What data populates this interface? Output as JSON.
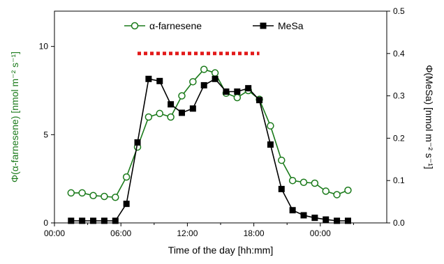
{
  "chart_data": {
    "type": "line",
    "xlabel": "Time of the day [hh:mm]",
    "ylabel_left": "Φ(α-farnesene) [nmol m⁻² s⁻¹]",
    "ylabel_right": "Φ(MeSa) [nmol m⁻² s⁻¹]",
    "xlim": [
      0,
      30
    ],
    "ylim_left": [
      0,
      12
    ],
    "ylim_right": [
      0,
      0.5
    ],
    "x_ticks": [
      {
        "value": 0,
        "label": "00:00"
      },
      {
        "value": 6,
        "label": "06:00"
      },
      {
        "value": 12,
        "label": "12:00"
      },
      {
        "value": 18,
        "label": "18:00"
      },
      {
        "value": 24,
        "label": "00:00"
      }
    ],
    "y_ticks_left": [
      {
        "value": 0,
        "label": "0"
      },
      {
        "value": 5,
        "label": "5"
      },
      {
        "value": 10,
        "label": "10"
      }
    ],
    "y_ticks_right": [
      {
        "value": 0,
        "label": "0.0"
      },
      {
        "value": 0.1,
        "label": "0.1"
      },
      {
        "value": 0.2,
        "label": "0.2"
      },
      {
        "value": 0.3,
        "label": "0.3"
      },
      {
        "value": 0.4,
        "label": "0.4"
      },
      {
        "value": 0.5,
        "label": "0.5"
      }
    ],
    "legend_position": "top",
    "grid": false,
    "series": [
      {
        "name": "α-farnesene",
        "axis": "left",
        "color": "#1a7a1a",
        "marker": "open-circle",
        "x": [
          1.5,
          2.5,
          3.5,
          4.5,
          5.5,
          6.5,
          7.5,
          8.5,
          9.5,
          10.5,
          11.5,
          12.5,
          13.5,
          14.5,
          15.5,
          16.5,
          17.5,
          18.5,
          19.5,
          20.5,
          21.5,
          22.5,
          23.5,
          24.5,
          25.5,
          26.5
        ],
        "y": [
          1.7,
          1.7,
          1.55,
          1.5,
          1.45,
          2.6,
          4.3,
          6.0,
          6.2,
          6.0,
          7.2,
          8.0,
          8.7,
          8.5,
          7.35,
          7.1,
          7.5,
          7.0,
          5.5,
          3.55,
          2.4,
          2.3,
          2.25,
          1.8,
          1.6,
          1.85
        ]
      },
      {
        "name": "MeSa",
        "axis": "right",
        "color": "#000000",
        "marker": "filled-square",
        "x": [
          1.5,
          2.5,
          3.5,
          4.5,
          5.5,
          6.5,
          7.5,
          8.5,
          9.5,
          10.5,
          11.5,
          12.5,
          13.5,
          14.5,
          15.5,
          16.5,
          17.5,
          18.5,
          19.5,
          20.5,
          21.5,
          22.5,
          23.5,
          24.5,
          25.5,
          26.5
        ],
        "y": [
          0.005,
          0.005,
          0.005,
          0.005,
          0.005,
          0.045,
          0.19,
          0.34,
          0.335,
          0.28,
          0.26,
          0.27,
          0.325,
          0.34,
          0.31,
          0.31,
          0.318,
          0.29,
          0.185,
          0.08,
          0.03,
          0.018,
          0.012,
          0.008,
          0.005,
          0.005
        ]
      }
    ],
    "annotations": [
      {
        "type": "dotted-bar",
        "color": "#e21a1a",
        "x_start": 7.5,
        "x_end": 18.5,
        "y_left": 9.6
      }
    ]
  }
}
